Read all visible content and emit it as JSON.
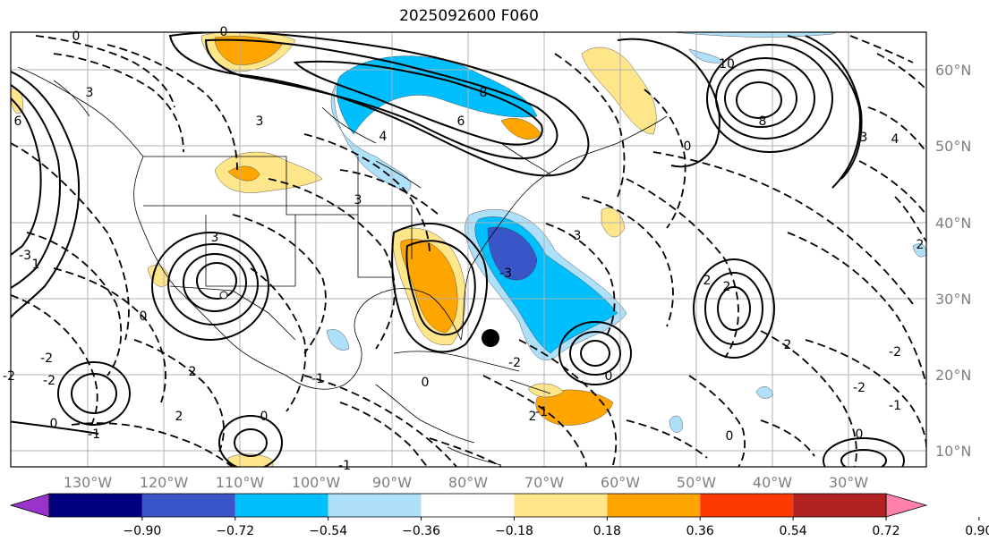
{
  "title": "2025092600 F060",
  "map": {
    "lon_ticks": [
      "130°W",
      "120°W",
      "110°W",
      "100°W",
      "90°W",
      "80°W",
      "70°W",
      "60°W",
      "50°W",
      "40°W",
      "30°W"
    ],
    "lat_ticks": [
      "60°N",
      "50°N",
      "40°N",
      "30°N",
      "20°N",
      "10°N"
    ],
    "contour_labels": [
      "0",
      "3",
      "6",
      "-3",
      "3",
      "3",
      "8",
      "6",
      "4",
      "8",
      "10",
      "3",
      "4",
      "0",
      "3",
      "-3",
      "2",
      "2",
      "0",
      "2",
      "0",
      "-2",
      "-2",
      "0",
      "-2",
      "-1",
      "0",
      "-2",
      "3",
      "-1",
      "0",
      "-1",
      "2",
      "-2",
      "2",
      "-1",
      "2",
      "0",
      "0",
      "-2",
      "-1",
      "0",
      "2",
      "1"
    ]
  },
  "colorbar": {
    "ticks": [
      "−0.90",
      "−0.72",
      "−0.54",
      "−0.36",
      "−0.18",
      "0.18",
      "0.36",
      "0.54",
      "0.72",
      "0.90"
    ],
    "colors": [
      "#9933cc",
      "#000080",
      "#3a55c8",
      "#00bfff",
      "#aee0fa",
      "#ffffff",
      "#ffe68a",
      "#ffa500",
      "#ff3a00",
      "#b22222",
      "#ff80a8"
    ]
  }
}
